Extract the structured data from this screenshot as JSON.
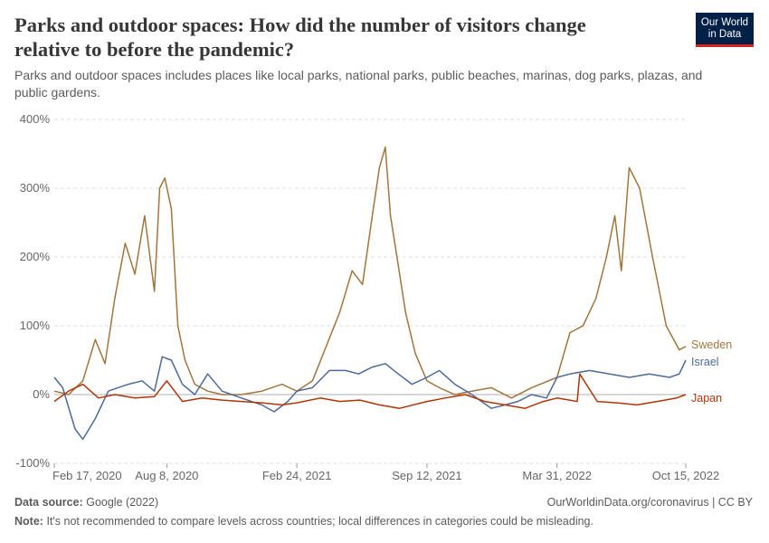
{
  "header": {
    "title": "Parks and outdoor spaces: How did the number of visitors change relative to before the pandemic?",
    "subtitle": "Parks and outdoor spaces includes places like local parks, national parks, public beaches, marinas, dog parks, plazas, and public gardens.",
    "logo_line1": "Our World",
    "logo_line2": "in Data"
  },
  "footer": {
    "source_label": "Data source:",
    "source_value": "Google (2022)",
    "credit": "OurWorldinData.org/coronavirus | CC BY",
    "note_label": "Note:",
    "note_value": "It's not recommended to compare levels across countries; local differences in categories could be misleading."
  },
  "colors": {
    "sweden": "#a2753d",
    "israel": "#4c6a9c",
    "japan": "#b13507",
    "grid": "#dddddd",
    "zero": "#b0b0b0",
    "brand": "#002147",
    "brand_accent": "#ce261e"
  },
  "chart_data": {
    "type": "line",
    "title": "",
    "xlabel": "",
    "ylabel": "",
    "x_domain": [
      "2020-02-17",
      "2022-10-15"
    ],
    "ylim": [
      -100,
      400
    ],
    "yticks": [
      -100,
      0,
      100,
      200,
      300,
      400
    ],
    "ytick_labels": [
      "-100%",
      "0%",
      "100%",
      "200%",
      "300%",
      "400%"
    ],
    "xticks": [
      "2020-02-17",
      "2020-08-08",
      "2021-02-24",
      "2021-09-12",
      "2022-03-31",
      "2022-10-15"
    ],
    "xtick_labels": [
      "Feb 17, 2020",
      "Aug 8, 2020",
      "Feb 24, 2021",
      "Sep 12, 2021",
      "Mar 31, 2022",
      "Oct 15, 2022"
    ],
    "grid": true,
    "series": [
      {
        "name": "Sweden",
        "color": "#a2753d",
        "x": [
          "2020-02-17",
          "2020-03-10",
          "2020-04-01",
          "2020-04-20",
          "2020-05-05",
          "2020-05-20",
          "2020-06-05",
          "2020-06-20",
          "2020-07-05",
          "2020-07-20",
          "2020-07-28",
          "2020-08-05",
          "2020-08-15",
          "2020-08-25",
          "2020-09-05",
          "2020-09-20",
          "2020-10-10",
          "2020-11-01",
          "2020-12-01",
          "2021-01-01",
          "2021-02-01",
          "2021-02-24",
          "2021-03-20",
          "2021-04-10",
          "2021-05-01",
          "2021-05-20",
          "2021-06-05",
          "2021-06-20",
          "2021-07-01",
          "2021-07-10",
          "2021-07-18",
          "2021-07-28",
          "2021-08-10",
          "2021-08-25",
          "2021-09-12",
          "2021-10-01",
          "2021-10-25",
          "2021-11-20",
          "2021-12-20",
          "2022-01-20",
          "2022-02-20",
          "2022-03-31",
          "2022-04-20",
          "2022-05-10",
          "2022-05-30",
          "2022-06-15",
          "2022-06-28",
          "2022-07-08",
          "2022-07-20",
          "2022-08-05",
          "2022-08-25",
          "2022-09-15",
          "2022-10-05",
          "2022-10-15"
        ],
        "y": [
          5,
          0,
          20,
          80,
          45,
          140,
          220,
          175,
          260,
          150,
          300,
          315,
          270,
          100,
          50,
          15,
          5,
          0,
          0,
          5,
          15,
          5,
          20,
          70,
          120,
          180,
          160,
          260,
          330,
          360,
          260,
          200,
          120,
          60,
          20,
          10,
          0,
          5,
          10,
          -5,
          10,
          25,
          90,
          100,
          140,
          200,
          260,
          180,
          330,
          300,
          200,
          100,
          65,
          70
        ]
      },
      {
        "name": "Israel",
        "color": "#4c6a9c",
        "x": [
          "2020-02-17",
          "2020-03-01",
          "2020-03-20",
          "2020-04-01",
          "2020-04-20",
          "2020-05-10",
          "2020-05-25",
          "2020-06-10",
          "2020-07-01",
          "2020-07-20",
          "2020-08-01",
          "2020-08-15",
          "2020-09-01",
          "2020-09-20",
          "2020-10-10",
          "2020-11-01",
          "2020-12-01",
          "2021-01-01",
          "2021-01-20",
          "2021-02-10",
          "2021-02-24",
          "2021-03-20",
          "2021-04-15",
          "2021-05-10",
          "2021-05-30",
          "2021-06-20",
          "2021-07-10",
          "2021-07-30",
          "2021-08-20",
          "2021-09-12",
          "2021-10-01",
          "2021-10-25",
          "2021-11-20",
          "2021-12-20",
          "2022-01-10",
          "2022-01-30",
          "2022-02-20",
          "2022-03-15",
          "2022-03-31",
          "2022-04-20",
          "2022-05-20",
          "2022-06-20",
          "2022-07-20",
          "2022-08-20",
          "2022-09-20",
          "2022-10-05",
          "2022-10-15"
        ],
        "y": [
          25,
          10,
          -50,
          -65,
          -35,
          5,
          10,
          15,
          20,
          5,
          55,
          50,
          15,
          0,
          30,
          5,
          -5,
          -15,
          -25,
          -10,
          5,
          10,
          35,
          35,
          30,
          40,
          45,
          30,
          15,
          25,
          35,
          15,
          0,
          -20,
          -15,
          -10,
          0,
          -5,
          25,
          30,
          35,
          30,
          25,
          30,
          25,
          30,
          50
        ]
      },
      {
        "name": "Japan",
        "color": "#b13507",
        "x": [
          "2020-02-17",
          "2020-03-10",
          "2020-04-01",
          "2020-04-25",
          "2020-05-20",
          "2020-06-20",
          "2020-07-20",
          "2020-08-08",
          "2020-09-01",
          "2020-10-01",
          "2020-11-01",
          "2020-12-01",
          "2021-01-01",
          "2021-02-01",
          "2021-02-24",
          "2021-04-01",
          "2021-05-01",
          "2021-06-01",
          "2021-07-01",
          "2021-08-01",
          "2021-09-12",
          "2021-10-10",
          "2021-11-10",
          "2021-12-10",
          "2022-01-10",
          "2022-02-10",
          "2022-03-10",
          "2022-03-31",
          "2022-05-01",
          "2022-05-05",
          "2022-06-01",
          "2022-07-01",
          "2022-08-01",
          "2022-09-01",
          "2022-10-01",
          "2022-10-15"
        ],
        "y": [
          -10,
          5,
          15,
          -5,
          0,
          -5,
          -3,
          20,
          -10,
          -5,
          -8,
          -10,
          -12,
          -15,
          -12,
          -5,
          -10,
          -8,
          -15,
          -20,
          -10,
          -5,
          0,
          -10,
          -15,
          -20,
          -10,
          -5,
          -10,
          30,
          -10,
          -12,
          -15,
          -10,
          -5,
          0
        ]
      }
    ]
  }
}
